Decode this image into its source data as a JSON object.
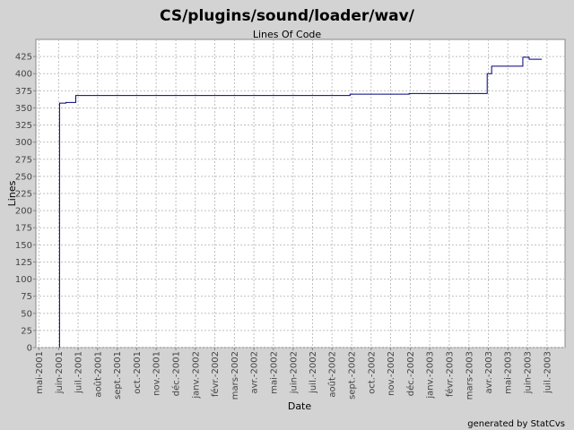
{
  "chart_data": {
    "type": "line",
    "title": "CS/plugins/sound/loader/wav/",
    "subtitle": "Lines Of Code",
    "x_label": "Date",
    "y_label": "Lines",
    "footer": "generated by StatCvs",
    "grid": true,
    "step": true,
    "xlim": [
      2001.32,
      2003.577
    ],
    "ylim": [
      0,
      450
    ],
    "yticks": [
      0,
      25,
      50,
      75,
      100,
      125,
      150,
      175,
      200,
      225,
      250,
      275,
      300,
      325,
      350,
      375,
      400,
      425
    ],
    "xticks": [
      {
        "value": 2001.333,
        "label": "mai-2001"
      },
      {
        "value": 2001.417,
        "label": "juin-2001"
      },
      {
        "value": 2001.5,
        "label": "juil.-2001"
      },
      {
        "value": 2001.583,
        "label": "août-2001"
      },
      {
        "value": 2001.667,
        "label": "sept.-2001"
      },
      {
        "value": 2001.75,
        "label": "oct.-2001"
      },
      {
        "value": 2001.833,
        "label": "nov.-2001"
      },
      {
        "value": 2001.917,
        "label": "déc.-2001"
      },
      {
        "value": 2002,
        "label": "janv.-2002"
      },
      {
        "value": 2002.083,
        "label": "févr.-2002"
      },
      {
        "value": 2002.167,
        "label": "mars-2002"
      },
      {
        "value": 2002.25,
        "label": "avr.-2002"
      },
      {
        "value": 2002.333,
        "label": "mai-2002"
      },
      {
        "value": 2002.417,
        "label": "juin-2002"
      },
      {
        "value": 2002.5,
        "label": "juil.-2002"
      },
      {
        "value": 2002.583,
        "label": "août-2002"
      },
      {
        "value": 2002.667,
        "label": "sept.-2002"
      },
      {
        "value": 2002.75,
        "label": "oct.-2002"
      },
      {
        "value": 2002.833,
        "label": "nov.-2002"
      },
      {
        "value": 2002.917,
        "label": "déc.-2002"
      },
      {
        "value": 2003,
        "label": "janv.-2003"
      },
      {
        "value": 2003.083,
        "label": "févr.-2003"
      },
      {
        "value": 2003.167,
        "label": "mars-2003"
      },
      {
        "value": 2003.25,
        "label": "avr.-2003"
      },
      {
        "value": 2003.333,
        "label": "mai-2003"
      },
      {
        "value": 2003.417,
        "label": "juin-2003"
      },
      {
        "value": 2003.5,
        "label": "juil.-2003"
      }
    ],
    "series": [
      {
        "color": "#000080",
        "x": [
          2001.421,
          2001.421,
          2001.448,
          2001.49,
          2002.66,
          2002.912,
          2003.245,
          2003.264,
          2003.397,
          2003.424,
          2003.478
        ],
        "values": [
          0,
          357,
          358,
          368,
          370,
          371,
          400,
          411,
          424,
          421,
          421
        ]
      }
    ]
  }
}
